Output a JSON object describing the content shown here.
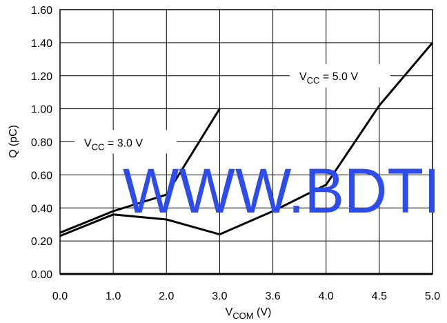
{
  "chart_data": {
    "type": "line",
    "xlabel": {
      "main": "V",
      "sub": "COM",
      "unit": " (V)"
    },
    "ylabel": "Q (pC)",
    "x_ticks": [
      "0.0",
      "1.0",
      "2.0",
      "3.0",
      "3.6",
      "4.0",
      "4.5",
      "5.0"
    ],
    "y_ticks": [
      "0.00",
      "0.20",
      "0.40",
      "0.60",
      "0.80",
      "1.00",
      "1.20",
      "1.40",
      "1.60"
    ],
    "ylim": [
      0,
      1.6
    ],
    "grid": true,
    "series": [
      {
        "name": "VCC = 3.0 V",
        "label": {
          "main": "V",
          "sub": "CC",
          "rest": " = 3.0 V"
        },
        "points": [
          [
            0.0,
            0.25
          ],
          [
            1.0,
            0.38
          ],
          [
            2.0,
            0.48
          ],
          [
            3.0,
            1.0
          ]
        ]
      },
      {
        "name": "VCC = 5.0 V",
        "label": {
          "main": "V",
          "sub": "CC",
          "rest": " = 5.0 V"
        },
        "points": [
          [
            0.0,
            0.23
          ],
          [
            1.0,
            0.36
          ],
          [
            2.0,
            0.33
          ],
          [
            3.0,
            0.24
          ],
          [
            3.6,
            0.38
          ],
          [
            4.0,
            0.54
          ],
          [
            4.5,
            1.02
          ],
          [
            5.0,
            1.4
          ]
        ]
      }
    ],
    "annotation_tick_1": "0.80",
    "annotation_tick_2": "1.20"
  },
  "watermark": {
    "text": "WWW.BDTI",
    "color": "#2d4cf0"
  }
}
